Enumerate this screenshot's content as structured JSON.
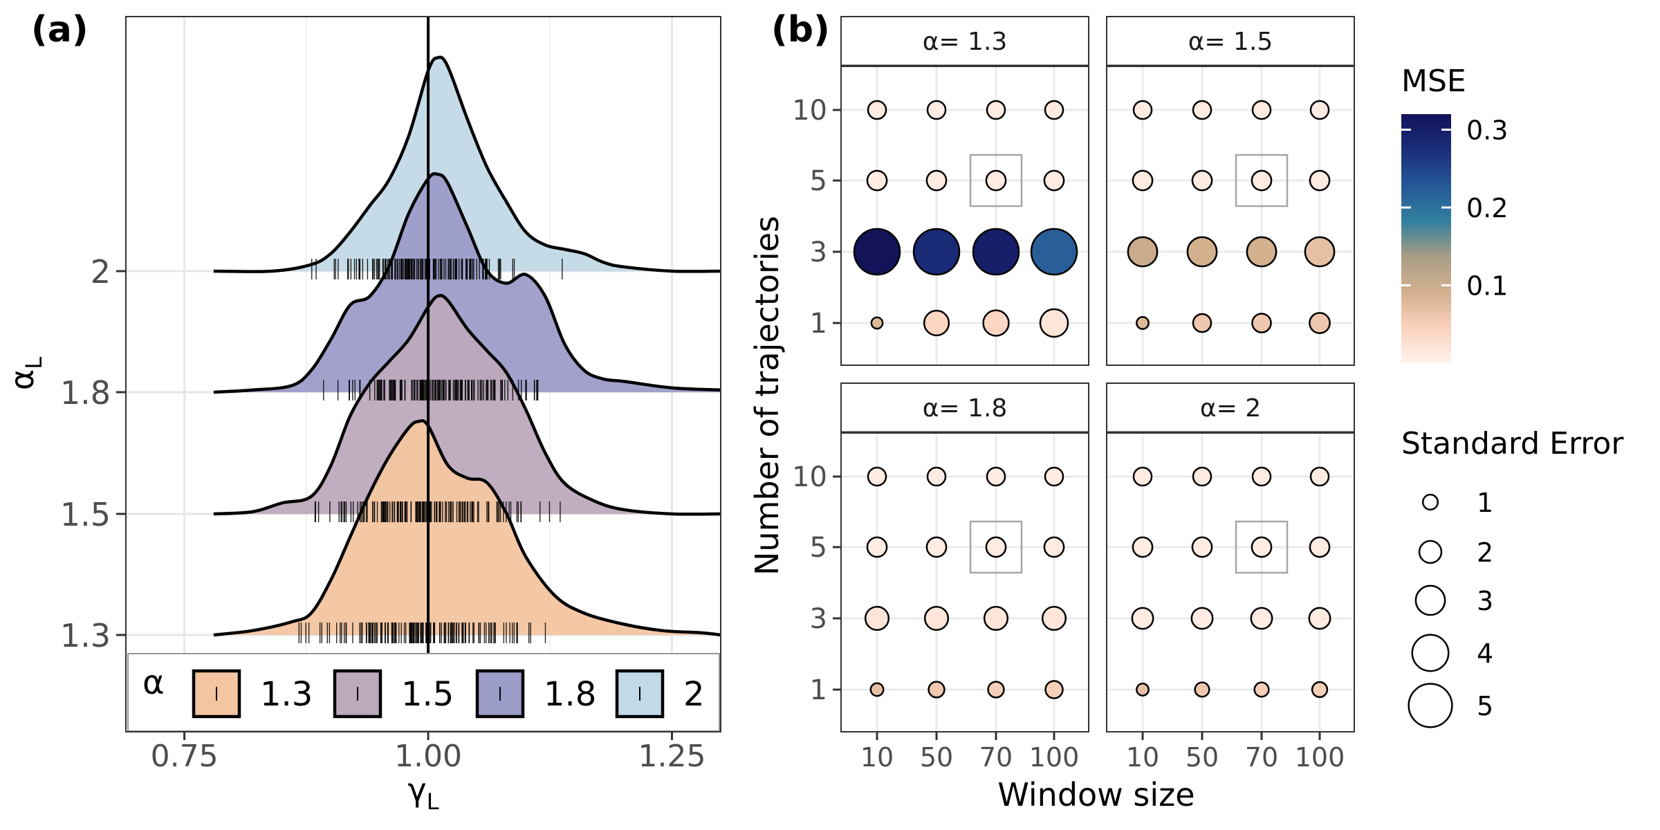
{
  "chart_data": [
    {
      "panel_label": "(a)",
      "type": "ridgeline-density",
      "xlabel_base": "γ",
      "xlabel_sub": "L",
      "ylabel_base": "α",
      "ylabel_sub": "L",
      "xlim": [
        0.69,
        1.3
      ],
      "x_ticks": [
        0.75,
        1.0,
        1.25
      ],
      "x_tick_labels": [
        "0.75",
        "1.00",
        "1.25"
      ],
      "reference_line_x": 1.0,
      "grid": true,
      "legend": {
        "position": "bottom",
        "title": "α",
        "entries": [
          {
            "label": "1.3",
            "color": "#f3c5a0"
          },
          {
            "label": "1.5",
            "color": "#bda9bc"
          },
          {
            "label": "1.8",
            "color": "#9c9cc9"
          },
          {
            "label": "2",
            "color": "#c2d9e7"
          }
        ]
      },
      "series": [
        {
          "name": "1.3",
          "color": "#f3c5a0",
          "y_label": "1.3",
          "x": [
            0.78,
            0.82,
            0.86,
            0.88,
            0.9,
            0.92,
            0.94,
            0.96,
            0.98,
            0.99,
            1.0,
            1.02,
            1.04,
            1.06,
            1.08,
            1.1,
            1.13,
            1.16,
            1.2,
            1.24,
            1.28,
            1.3
          ],
          "density": [
            0.0,
            0.02,
            0.06,
            0.1,
            0.25,
            0.45,
            0.65,
            0.82,
            0.95,
            0.98,
            0.96,
            0.78,
            0.72,
            0.7,
            0.56,
            0.36,
            0.18,
            0.1,
            0.05,
            0.02,
            0.01,
            0.0
          ]
        },
        {
          "name": "1.5",
          "color": "#bda9bc",
          "y_label": "1.5",
          "x": [
            0.78,
            0.82,
            0.85,
            0.88,
            0.9,
            0.92,
            0.94,
            0.96,
            0.98,
            1.0,
            1.01,
            1.02,
            1.04,
            1.06,
            1.08,
            1.1,
            1.12,
            1.14,
            1.17,
            1.2,
            1.25,
            1.3
          ],
          "density": [
            0.0,
            0.01,
            0.05,
            0.08,
            0.22,
            0.45,
            0.6,
            0.7,
            0.8,
            0.95,
            1.0,
            0.98,
            0.85,
            0.75,
            0.65,
            0.48,
            0.28,
            0.14,
            0.06,
            0.02,
            0.0,
            0.0
          ]
        },
        {
          "name": "1.8",
          "color": "#9c9cc9",
          "y_label": "1.8",
          "x": [
            0.78,
            0.82,
            0.86,
            0.88,
            0.9,
            0.92,
            0.94,
            0.96,
            0.98,
            1.0,
            1.01,
            1.02,
            1.04,
            1.06,
            1.08,
            1.1,
            1.12,
            1.14,
            1.16,
            1.18,
            1.2,
            1.25,
            1.3
          ],
          "density": [
            0.0,
            0.01,
            0.03,
            0.1,
            0.24,
            0.4,
            0.44,
            0.58,
            0.82,
            0.98,
            1.0,
            0.96,
            0.76,
            0.56,
            0.5,
            0.54,
            0.44,
            0.22,
            0.1,
            0.06,
            0.05,
            0.02,
            0.01
          ]
        },
        {
          "name": "2",
          "color": "#c2d9e7",
          "y_label": "2",
          "x": [
            0.78,
            0.84,
            0.88,
            0.9,
            0.92,
            0.94,
            0.96,
            0.98,
            1.0,
            1.01,
            1.02,
            1.04,
            1.06,
            1.08,
            1.1,
            1.12,
            1.14,
            1.16,
            1.18,
            1.2,
            1.25,
            1.3
          ],
          "density": [
            0.0,
            0.0,
            0.03,
            0.08,
            0.18,
            0.3,
            0.42,
            0.62,
            0.92,
            0.98,
            0.94,
            0.7,
            0.48,
            0.32,
            0.18,
            0.12,
            0.1,
            0.08,
            0.04,
            0.02,
            0.0,
            0.0
          ]
        }
      ]
    },
    {
      "panel_label": "(b)",
      "type": "bubble-facet",
      "xlabel": "Window size",
      "ylabel": "Number of trajectories",
      "x_categories": [
        "10",
        "50",
        "70",
        "100"
      ],
      "y_categories": [
        "1",
        "3",
        "5",
        "10"
      ],
      "color_legend": {
        "title": "MSE",
        "ticks": [
          0.1,
          0.2,
          0.3
        ],
        "tick_labels": [
          "0.1",
          "0.2",
          "0.3"
        ],
        "range": [
          0.0,
          0.32
        ],
        "stops": [
          "#fff3ee",
          "#fad2bd",
          "#d2b08e",
          "#a99d86",
          "#307f9d",
          "#265898",
          "#1a2d7a",
          "#13135a"
        ]
      },
      "size_legend": {
        "title": "Standard Error",
        "values": [
          1,
          2,
          3,
          4,
          5
        ],
        "labels": [
          "1",
          "2",
          "3",
          "4",
          "5"
        ]
      },
      "highlight": {
        "window": "70",
        "trajectories": "5"
      },
      "facets": [
        {
          "title": "α= 1.3",
          "points": [
            {
              "window": "10",
              "traj": "10",
              "mse": 0.01,
              "se": 1.3
            },
            {
              "window": "50",
              "traj": "10",
              "mse": 0.01,
              "se": 1.3
            },
            {
              "window": "70",
              "traj": "10",
              "mse": 0.01,
              "se": 1.3
            },
            {
              "window": "100",
              "traj": "10",
              "mse": 0.01,
              "se": 1.3
            },
            {
              "window": "10",
              "traj": "5",
              "mse": 0.01,
              "se": 1.5
            },
            {
              "window": "50",
              "traj": "5",
              "mse": 0.01,
              "se": 1.5
            },
            {
              "window": "70",
              "traj": "5",
              "mse": 0.01,
              "se": 1.5
            },
            {
              "window": "100",
              "traj": "5",
              "mse": 0.01,
              "se": 1.5
            },
            {
              "window": "10",
              "traj": "3",
              "mse": 0.32,
              "se": 5.0
            },
            {
              "window": "50",
              "traj": "3",
              "mse": 0.28,
              "se": 5.0
            },
            {
              "window": "70",
              "traj": "3",
              "mse": 0.3,
              "se": 5.0
            },
            {
              "window": "100",
              "traj": "3",
              "mse": 0.22,
              "se": 5.0
            },
            {
              "window": "10",
              "traj": "1",
              "mse": 0.08,
              "se": 0.4
            },
            {
              "window": "50",
              "traj": "1",
              "mse": 0.04,
              "se": 2.2
            },
            {
              "window": "70",
              "traj": "1",
              "mse": 0.04,
              "se": 2.3
            },
            {
              "window": "100",
              "traj": "1",
              "mse": 0.02,
              "se": 2.6
            }
          ]
        },
        {
          "title": "α= 1.5",
          "points": [
            {
              "window": "10",
              "traj": "10",
              "mse": 0.01,
              "se": 1.3
            },
            {
              "window": "50",
              "traj": "10",
              "mse": 0.01,
              "se": 1.3
            },
            {
              "window": "70",
              "traj": "10",
              "mse": 0.01,
              "se": 1.3
            },
            {
              "window": "100",
              "traj": "10",
              "mse": 0.01,
              "se": 1.3
            },
            {
              "window": "10",
              "traj": "5",
              "mse": 0.01,
              "se": 1.5
            },
            {
              "window": "50",
              "traj": "5",
              "mse": 0.01,
              "se": 1.5
            },
            {
              "window": "70",
              "traj": "5",
              "mse": 0.01,
              "se": 1.5
            },
            {
              "window": "100",
              "traj": "5",
              "mse": 0.01,
              "se": 1.5
            },
            {
              "window": "10",
              "traj": "3",
              "mse": 0.1,
              "se": 2.8
            },
            {
              "window": "50",
              "traj": "3",
              "mse": 0.09,
              "se": 2.8
            },
            {
              "window": "70",
              "traj": "3",
              "mse": 0.09,
              "se": 2.8
            },
            {
              "window": "100",
              "traj": "3",
              "mse": 0.07,
              "se": 2.8
            },
            {
              "window": "10",
              "traj": "1",
              "mse": 0.08,
              "se": 0.5
            },
            {
              "window": "50",
              "traj": "1",
              "mse": 0.06,
              "se": 1.3
            },
            {
              "window": "70",
              "traj": "1",
              "mse": 0.06,
              "se": 1.4
            },
            {
              "window": "100",
              "traj": "1",
              "mse": 0.06,
              "se": 1.6
            }
          ]
        },
        {
          "title": "α= 1.8",
          "points": [
            {
              "window": "10",
              "traj": "10",
              "mse": 0.01,
              "se": 1.3
            },
            {
              "window": "50",
              "traj": "10",
              "mse": 0.01,
              "se": 1.3
            },
            {
              "window": "70",
              "traj": "10",
              "mse": 0.01,
              "se": 1.3
            },
            {
              "window": "100",
              "traj": "10",
              "mse": 0.01,
              "se": 1.3
            },
            {
              "window": "10",
              "traj": "5",
              "mse": 0.01,
              "se": 1.5
            },
            {
              "window": "50",
              "traj": "5",
              "mse": 0.01,
              "se": 1.5
            },
            {
              "window": "70",
              "traj": "5",
              "mse": 0.01,
              "se": 1.5
            },
            {
              "window": "100",
              "traj": "5",
              "mse": 0.01,
              "se": 1.5
            },
            {
              "window": "10",
              "traj": "3",
              "mse": 0.02,
              "se": 2.0
            },
            {
              "window": "50",
              "traj": "3",
              "mse": 0.02,
              "se": 2.0
            },
            {
              "window": "70",
              "traj": "3",
              "mse": 0.02,
              "se": 2.0
            },
            {
              "window": "100",
              "traj": "3",
              "mse": 0.02,
              "se": 2.0
            },
            {
              "window": "10",
              "traj": "1",
              "mse": 0.07,
              "se": 0.6
            },
            {
              "window": "50",
              "traj": "1",
              "mse": 0.06,
              "se": 1.0
            },
            {
              "window": "70",
              "traj": "1",
              "mse": 0.05,
              "se": 1.0
            },
            {
              "window": "100",
              "traj": "1",
              "mse": 0.05,
              "se": 1.2
            }
          ]
        },
        {
          "title": "α= 2",
          "points": [
            {
              "window": "10",
              "traj": "10",
              "mse": 0.01,
              "se": 1.3
            },
            {
              "window": "50",
              "traj": "10",
              "mse": 0.01,
              "se": 1.3
            },
            {
              "window": "70",
              "traj": "10",
              "mse": 0.01,
              "se": 1.3
            },
            {
              "window": "100",
              "traj": "10",
              "mse": 0.01,
              "se": 1.3
            },
            {
              "window": "10",
              "traj": "5",
              "mse": 0.01,
              "se": 1.5
            },
            {
              "window": "50",
              "traj": "5",
              "mse": 0.01,
              "se": 1.5
            },
            {
              "window": "70",
              "traj": "5",
              "mse": 0.01,
              "se": 1.5
            },
            {
              "window": "100",
              "traj": "5",
              "mse": 0.01,
              "se": 1.5
            },
            {
              "window": "10",
              "traj": "3",
              "mse": 0.01,
              "se": 1.7
            },
            {
              "window": "50",
              "traj": "3",
              "mse": 0.01,
              "se": 1.7
            },
            {
              "window": "70",
              "traj": "3",
              "mse": 0.01,
              "se": 1.7
            },
            {
              "window": "100",
              "traj": "3",
              "mse": 0.01,
              "se": 1.7
            },
            {
              "window": "10",
              "traj": "1",
              "mse": 0.07,
              "se": 0.5
            },
            {
              "window": "50",
              "traj": "1",
              "mse": 0.06,
              "se": 0.8
            },
            {
              "window": "70",
              "traj": "1",
              "mse": 0.05,
              "se": 0.8
            },
            {
              "window": "100",
              "traj": "1",
              "mse": 0.05,
              "se": 0.9
            }
          ]
        }
      ]
    }
  ]
}
